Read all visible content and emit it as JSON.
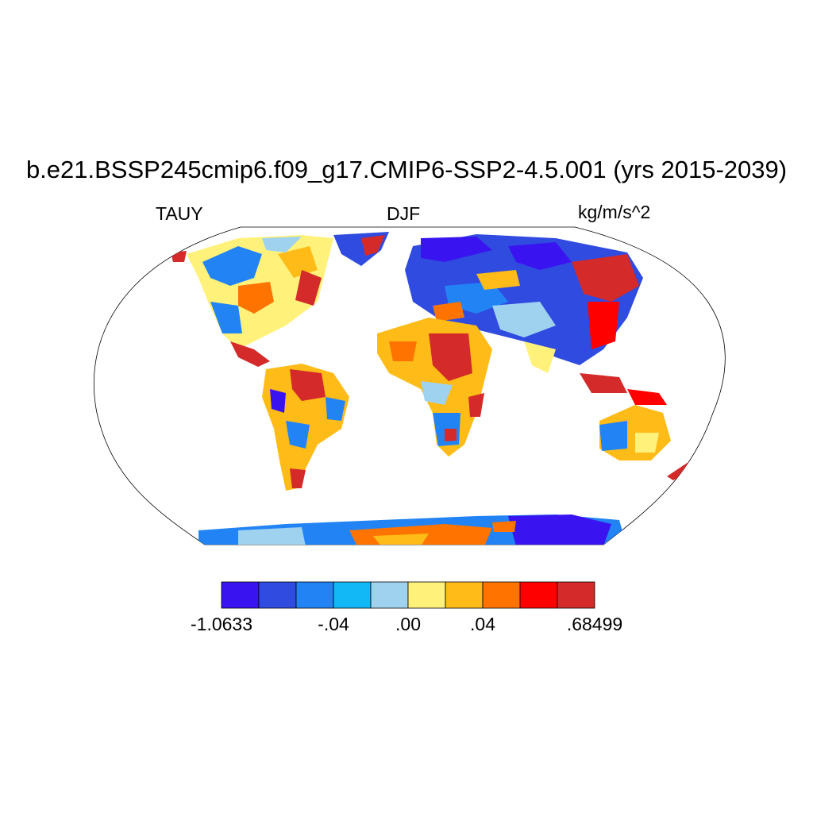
{
  "title": "b.e21.BSSP245cmip6.f09_g17.CMIP6-SSP2-4.5.001 (yrs 2015-2039)",
  "variable": "TAUY",
  "season": "DJF",
  "units": "kg/m/s^2",
  "colorbar": {
    "colors": [
      "#3a14f0",
      "#2f4be0",
      "#2284f4",
      "#12b8f5",
      "#9ed2ef",
      "#fff17a",
      "#ffbb17",
      "#ff7400",
      "#ff0000",
      "#d42a2a"
    ],
    "labels": [
      "-1.0633",
      "-.04",
      ".00",
      ".04",
      ".68499"
    ]
  }
}
